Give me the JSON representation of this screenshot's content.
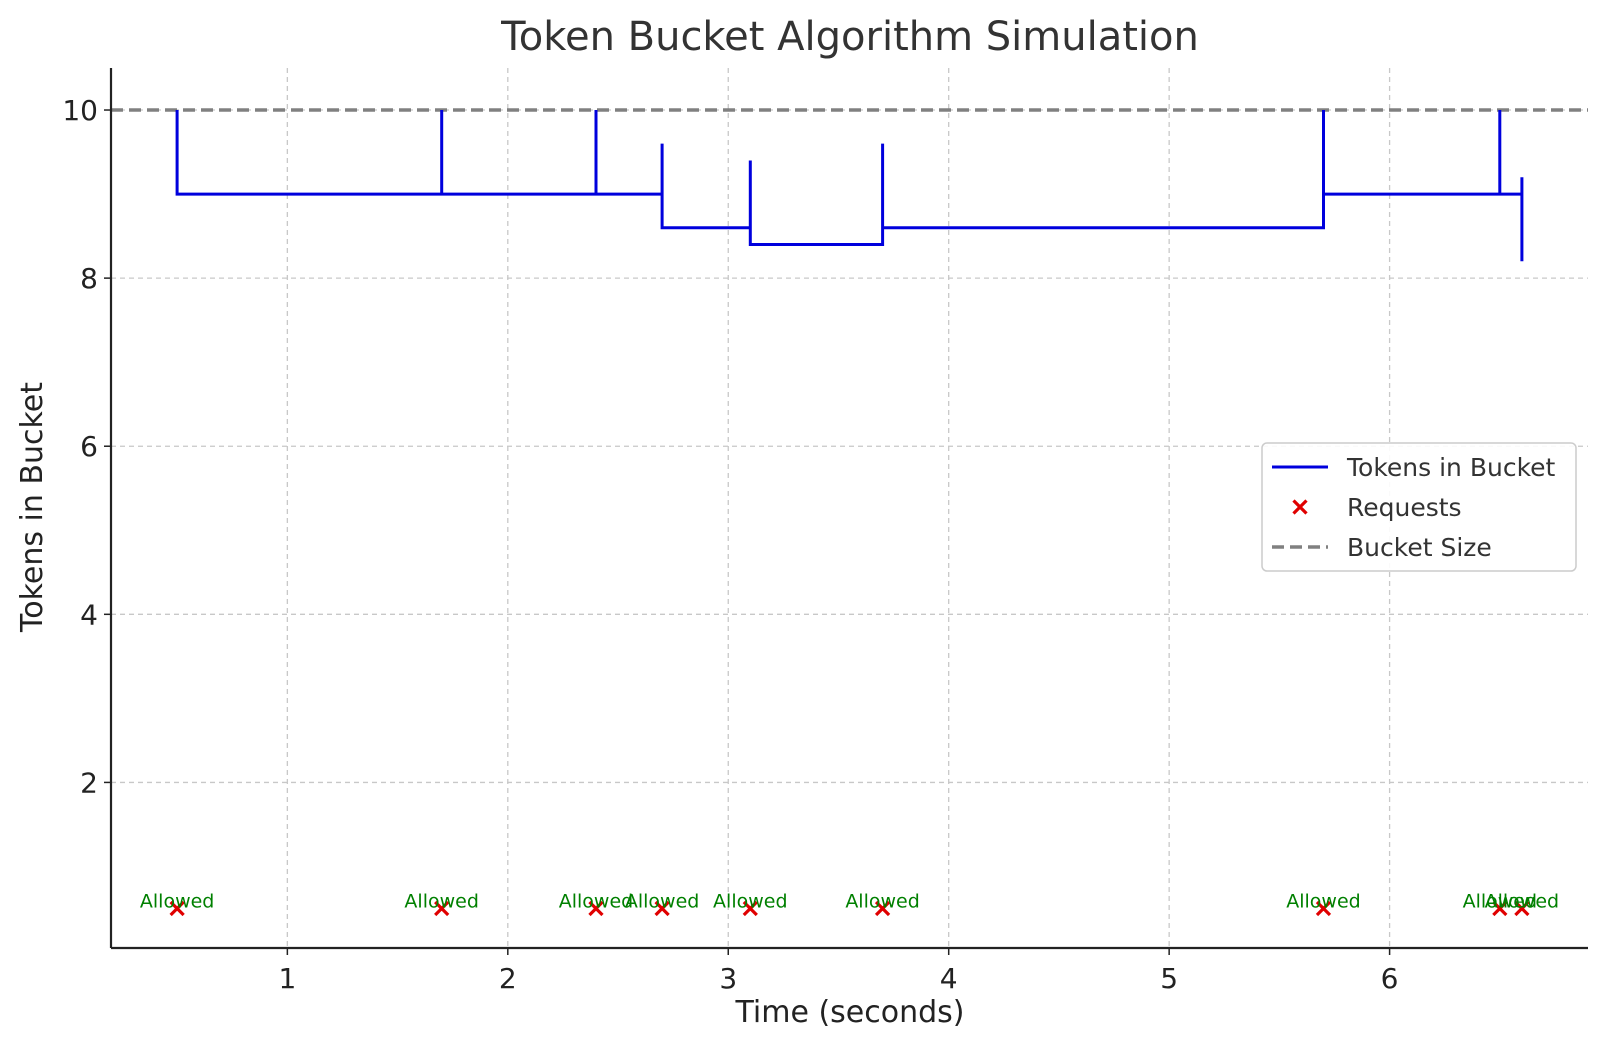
{
  "chart_data": {
    "type": "line",
    "title": "Token Bucket Algorithm Simulation",
    "xlabel": "Time (seconds)",
    "ylabel": "Tokens in Bucket",
    "xlim": [
      0.2,
      6.9
    ],
    "ylim": [
      0.03,
      10.5
    ],
    "xticks": [
      1,
      2,
      3,
      4,
      5,
      6
    ],
    "yticks": [
      2,
      4,
      6,
      8,
      10
    ],
    "grid": true,
    "legend_position": "center-right",
    "colors": {
      "tokens": "#0000dd",
      "requests": "#e00000",
      "bucket_size": "#808080",
      "annotation": "#008000"
    },
    "bucket_size": 10,
    "series": [
      {
        "name": "Tokens in Bucket",
        "kind": "line",
        "points": [
          [
            0.5,
            10
          ],
          [
            0.5,
            9
          ],
          [
            1.7,
            9
          ],
          [
            1.7,
            10
          ],
          [
            1.7,
            9
          ],
          [
            2.4,
            9
          ],
          [
            2.4,
            10
          ],
          [
            2.4,
            9
          ],
          [
            2.7,
            9
          ],
          [
            2.7,
            9.6
          ],
          [
            2.7,
            8.6
          ],
          [
            3.1,
            8.6
          ],
          [
            3.1,
            9.4
          ],
          [
            3.1,
            8.4
          ],
          [
            3.7,
            8.4
          ],
          [
            3.7,
            9.6
          ],
          [
            3.7,
            8.6
          ],
          [
            5.7,
            8.6
          ],
          [
            5.7,
            10
          ],
          [
            5.7,
            9
          ],
          [
            6.5,
            9
          ],
          [
            6.5,
            10
          ],
          [
            6.5,
            9
          ],
          [
            6.6,
            9
          ],
          [
            6.6,
            9.2
          ],
          [
            6.6,
            8.2
          ]
        ]
      },
      {
        "name": "Requests",
        "kind": "scatter",
        "x": [
          0.5,
          1.7,
          2.4,
          2.7,
          3.1,
          3.7,
          5.7,
          6.5,
          6.6
        ],
        "y": [
          0.5,
          0.5,
          0.5,
          0.5,
          0.5,
          0.5,
          0.5,
          0.5,
          0.5
        ]
      },
      {
        "name": "Bucket Size",
        "kind": "hline",
        "y": 10
      }
    ],
    "annotations": [
      {
        "x": 0.5,
        "y": 0.5,
        "text": "Allowed"
      },
      {
        "x": 1.7,
        "y": 0.5,
        "text": "Allowed"
      },
      {
        "x": 2.4,
        "y": 0.5,
        "text": "Allowed"
      },
      {
        "x": 2.7,
        "y": 0.5,
        "text": "Allowed"
      },
      {
        "x": 3.1,
        "y": 0.5,
        "text": "Allowed"
      },
      {
        "x": 3.7,
        "y": 0.5,
        "text": "Allowed"
      },
      {
        "x": 5.7,
        "y": 0.5,
        "text": "Allowed"
      },
      {
        "x": 6.5,
        "y": 0.5,
        "text": "Allowed"
      },
      {
        "x": 6.6,
        "y": 0.5,
        "text": "Allowed"
      }
    ]
  }
}
